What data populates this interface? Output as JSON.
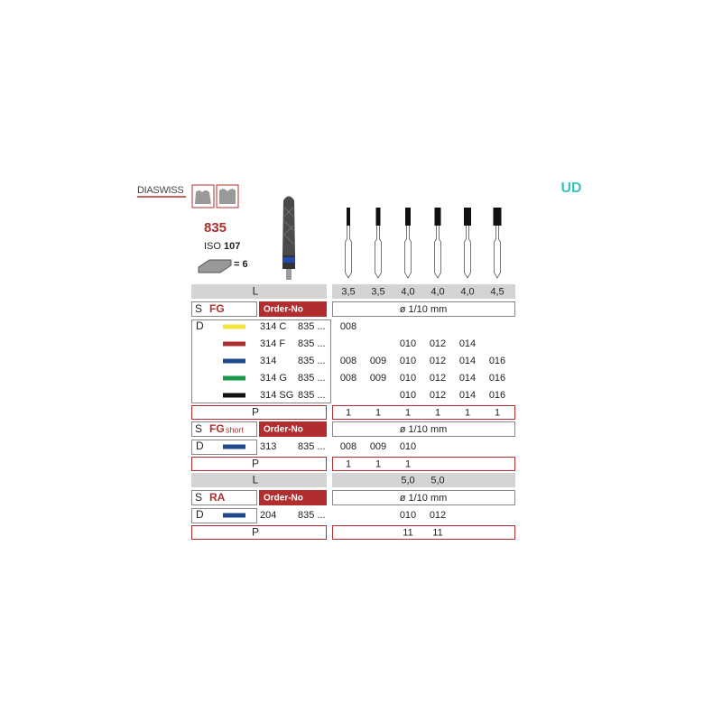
{
  "header": {
    "brand": "DIASWISS",
    "logo": "UD",
    "product": "835",
    "iso_label": "ISO",
    "iso_number": "107",
    "pack": "= 6"
  },
  "sections": [
    {
      "length_header": {
        "label": "L",
        "values": [
          "3,5",
          "3,5",
          "4,0",
          "4,0",
          "4,0",
          "4,5"
        ]
      },
      "shank": {
        "s": "S",
        "type": "FG",
        "order_label": "Order-No",
        "unit": "ø 1/10 mm"
      },
      "d_label": "D",
      "rows": [
        {
          "color": "#f3e33a",
          "code": "314 C",
          "figure": "835 ...",
          "sizes": [
            "008",
            null,
            null,
            null,
            null,
            null
          ]
        },
        {
          "color": "#a8302f",
          "code": "314 F",
          "figure": "835 ...",
          "sizes": [
            null,
            null,
            "010",
            "012",
            "014",
            null
          ]
        },
        {
          "color": "#1f4a8c",
          "code": "314",
          "figure": "835 ...",
          "sizes": [
            "008",
            "009",
            "010",
            "012",
            "014",
            "016"
          ]
        },
        {
          "color": "#1a9a4a",
          "code": "314 G",
          "figure": "835 ...",
          "sizes": [
            "008",
            "009",
            "010",
            "012",
            "014",
            "016"
          ]
        },
        {
          "color": "#111111",
          "code": "314 SG",
          "figure": "835 ...",
          "sizes": [
            null,
            null,
            "010",
            "012",
            "014",
            "016"
          ]
        }
      ],
      "p_label": "P",
      "p_values": [
        1,
        1,
        1,
        1,
        1,
        1
      ]
    },
    {
      "shank": {
        "s": "S",
        "type": "FG",
        "type_suffix": "short",
        "order_label": "Order-No",
        "unit": "ø 1/10 mm"
      },
      "d_label": "D",
      "rows": [
        {
          "color": "#1f4a8c",
          "code": "313",
          "figure": "835 ...",
          "sizes": [
            "008",
            "009",
            "010",
            null,
            null,
            null
          ]
        }
      ],
      "p_label": "P",
      "p_values": [
        1,
        1,
        1,
        null,
        null,
        null
      ]
    },
    {
      "length_header": {
        "label": "L",
        "values": [
          null,
          null,
          "5,0",
          "5,0",
          null,
          null
        ]
      },
      "shank": {
        "s": "S",
        "type": "RA",
        "order_label": "Order-No",
        "unit": "ø 1/10 mm"
      },
      "d_label": "D",
      "rows": [
        {
          "color": "#1f4a8c",
          "code": "204",
          "figure": "835 ...",
          "sizes": [
            null,
            null,
            "010",
            "012",
            null,
            null
          ]
        }
      ],
      "p_label": "P",
      "p_values": [
        null,
        null,
        11,
        11,
        null,
        null
      ]
    }
  ]
}
